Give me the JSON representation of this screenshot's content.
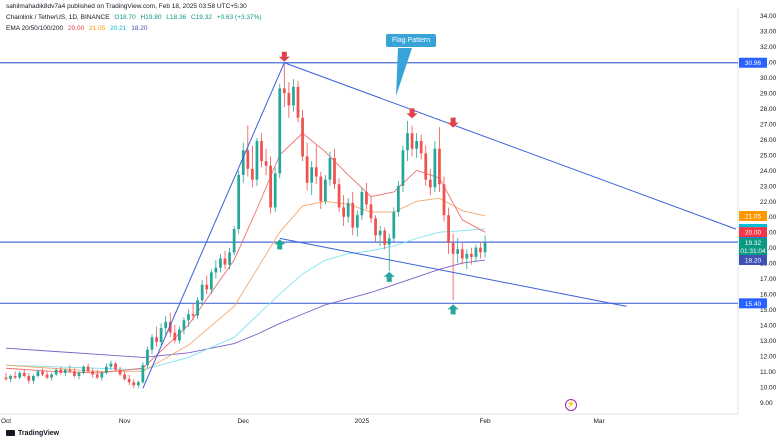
{
  "header": {
    "publisher": "sahilmahadik8dv7a4 published on TradingView.com, Feb 18, 2025 03:58 UTC+5:30",
    "symbol": "Chainlink / TetherUS, 1D, BINANCE",
    "ohlc": {
      "o": "O18.70",
      "h": "H19.80",
      "l": "L18.36",
      "c": "C19.32",
      "chg": "+0.63 (+3.37%)"
    },
    "ema_label": "EMA 20/50/100/200",
    "ema_values": [
      "20.00",
      "21.05",
      "20.21",
      "18.20"
    ]
  },
  "annotations": {
    "flag_pattern": "Flag Pattern"
  },
  "footer": {
    "brand": "TradingView"
  },
  "colors": {
    "up": "#26a69a",
    "down": "#ef5350",
    "ema20": "#f06c6c",
    "ema50": "#f6a76b",
    "ema100": "#7fe3f2",
    "ema200": "#7b5fc9",
    "trendline": "#3a5fd9",
    "hline": "#4a6ed8",
    "arrow_down": "#e0414a",
    "arrow_up": "#26a69a"
  },
  "chart_data": {
    "type": "candlestick",
    "title": "Chainlink / TetherUS, 1D, BINANCE",
    "ylim": [
      8.5,
      34.5
    ],
    "y_ticks": [
      9,
      10,
      11,
      12,
      13,
      14,
      15,
      16,
      17,
      18,
      19,
      20,
      21,
      22,
      23,
      24,
      25,
      26,
      27,
      28,
      29,
      30,
      31,
      32,
      33,
      34
    ],
    "x_labels": [
      {
        "label": "Oct",
        "x": 0
      },
      {
        "label": "Nov",
        "x": 26
      },
      {
        "label": "Dec",
        "x": 52
      },
      {
        "label": "2025",
        "x": 78
      },
      {
        "label": "Feb",
        "x": 105
      },
      {
        "label": "Mar",
        "x": 130
      }
    ],
    "x_range": [
      0,
      160
    ],
    "horizontal_levels": [
      30.96,
      19.36,
      15.4
    ],
    "price_tags": [
      {
        "value": "30.96",
        "price": 30.96,
        "color": "#2962ff"
      },
      {
        "value": "21.05",
        "price": 21.05,
        "color": "#ff9800"
      },
      {
        "value": "20.21",
        "price": 20.21,
        "color": "#00bcd4"
      },
      {
        "value": "20.00",
        "price": 20.0,
        "color": "#f23645"
      },
      {
        "value": "19.36",
        "price": 19.36,
        "color": "#2962ff"
      },
      {
        "value": "19.32",
        "price": 19.32,
        "color": "#089981"
      },
      {
        "value": "01:31:04",
        "price": 18.8,
        "color": "#089981"
      },
      {
        "value": "18.20",
        "price": 18.2,
        "color": "#3f51b5"
      },
      {
        "value": "15.40",
        "price": 15.4,
        "color": "#2962ff"
      }
    ],
    "candles": [
      [
        0,
        10.6,
        10.9,
        10.4,
        10.5
      ],
      [
        1,
        10.5,
        10.8,
        10.3,
        10.7
      ],
      [
        2,
        10.7,
        11.0,
        10.5,
        10.6
      ],
      [
        3,
        10.6,
        11.0,
        10.5,
        10.9
      ],
      [
        4,
        10.9,
        11.1,
        10.6,
        10.7
      ],
      [
        5,
        10.7,
        10.9,
        10.2,
        10.4
      ],
      [
        6,
        10.4,
        10.8,
        10.2,
        10.7
      ],
      [
        7,
        10.7,
        11.1,
        10.6,
        11.0
      ],
      [
        8,
        11.0,
        11.2,
        10.7,
        10.8
      ],
      [
        9,
        10.8,
        11.0,
        10.5,
        10.6
      ],
      [
        10,
        10.6,
        10.9,
        10.4,
        10.8
      ],
      [
        11,
        10.8,
        11.2,
        10.7,
        11.1
      ],
      [
        12,
        11.1,
        11.3,
        10.8,
        10.9
      ],
      [
        13,
        10.9,
        11.2,
        10.7,
        11.1
      ],
      [
        14,
        11.1,
        11.4,
        10.9,
        11.0
      ],
      [
        15,
        11.0,
        11.2,
        10.6,
        10.7
      ],
      [
        16,
        10.7,
        11.0,
        10.5,
        10.9
      ],
      [
        17,
        10.9,
        11.4,
        10.8,
        11.3
      ],
      [
        18,
        11.3,
        11.5,
        10.9,
        11.0
      ],
      [
        19,
        11.0,
        11.2,
        10.6,
        10.8
      ],
      [
        20,
        10.8,
        11.1,
        10.5,
        10.6
      ],
      [
        21,
        10.6,
        11.0,
        10.4,
        10.9
      ],
      [
        22,
        10.9,
        11.5,
        10.8,
        11.3
      ],
      [
        23,
        11.3,
        11.7,
        11.1,
        11.5
      ],
      [
        24,
        11.5,
        11.6,
        11.0,
        11.1
      ],
      [
        25,
        11.1,
        11.3,
        10.7,
        10.8
      ],
      [
        26,
        10.8,
        11.0,
        10.4,
        10.5
      ],
      [
        27,
        10.5,
        10.8,
        10.1,
        10.3
      ],
      [
        28,
        10.3,
        10.5,
        9.9,
        10.1
      ],
      [
        29,
        10.1,
        10.4,
        9.9,
        10.3
      ],
      [
        30,
        10.3,
        11.6,
        10.2,
        11.4
      ],
      [
        31,
        11.4,
        12.6,
        11.2,
        12.4
      ],
      [
        32,
        12.4,
        13.4,
        12.1,
        13.2
      ],
      [
        33,
        13.2,
        13.9,
        12.6,
        12.9
      ],
      [
        34,
        12.9,
        14.1,
        12.7,
        13.8
      ],
      [
        35,
        13.8,
        14.6,
        13.3,
        14.2
      ],
      [
        36,
        14.2,
        14.8,
        13.2,
        13.5
      ],
      [
        37,
        13.5,
        14.0,
        12.8,
        13.0
      ],
      [
        38,
        13.0,
        13.9,
        12.8,
        13.7
      ],
      [
        39,
        13.7,
        14.5,
        13.4,
        14.3
      ],
      [
        40,
        14.3,
        15.0,
        13.9,
        14.7
      ],
      [
        41,
        14.7,
        15.4,
        14.3,
        14.6
      ],
      [
        42,
        14.6,
        15.8,
        14.4,
        15.6
      ],
      [
        43,
        15.6,
        16.9,
        15.3,
        16.6
      ],
      [
        44,
        16.6,
        17.2,
        16.0,
        16.3
      ],
      [
        45,
        16.3,
        17.6,
        16.0,
        17.4
      ],
      [
        46,
        17.4,
        18.2,
        17.0,
        17.7
      ],
      [
        47,
        17.7,
        18.6,
        17.4,
        18.3
      ],
      [
        48,
        18.3,
        18.8,
        17.6,
        17.9
      ],
      [
        49,
        17.9,
        19.0,
        17.6,
        18.7
      ],
      [
        50,
        18.7,
        20.4,
        18.5,
        20.2
      ],
      [
        51,
        20.2,
        24.0,
        19.9,
        23.7
      ],
      [
        52,
        23.7,
        25.8,
        23.2,
        25.3
      ],
      [
        53,
        25.3,
        26.9,
        23.6,
        24.1
      ],
      [
        54,
        24.1,
        25.6,
        22.9,
        23.4
      ],
      [
        55,
        23.4,
        26.1,
        23.0,
        25.9
      ],
      [
        56,
        25.9,
        26.4,
        24.2,
        24.6
      ],
      [
        57,
        24.6,
        25.4,
        23.7,
        24.3
      ],
      [
        58,
        24.3,
        24.9,
        21.2,
        21.6
      ],
      [
        59,
        21.6,
        24.2,
        21.3,
        23.8
      ],
      [
        60,
        23.8,
        29.6,
        23.5,
        29.3
      ],
      [
        61,
        29.3,
        30.9,
        28.1,
        29.0
      ],
      [
        62,
        29.0,
        29.7,
        27.4,
        28.2
      ],
      [
        63,
        28.2,
        29.9,
        27.8,
        29.4
      ],
      [
        64,
        29.4,
        29.8,
        27.1,
        27.4
      ],
      [
        65,
        27.4,
        27.9,
        24.6,
        24.9
      ],
      [
        66,
        24.9,
        25.8,
        22.7,
        23.2
      ],
      [
        67,
        23.2,
        24.6,
        22.4,
        24.2
      ],
      [
        68,
        24.2,
        25.6,
        23.1,
        23.6
      ],
      [
        69,
        23.6,
        23.9,
        21.5,
        22.0
      ],
      [
        70,
        22.0,
        23.7,
        21.8,
        23.4
      ],
      [
        71,
        23.4,
        25.2,
        23.0,
        24.8
      ],
      [
        72,
        24.8,
        25.4,
        22.8,
        23.1
      ],
      [
        73,
        23.1,
        23.5,
        21.3,
        21.6
      ],
      [
        74,
        21.6,
        22.4,
        20.4,
        21.0
      ],
      [
        75,
        21.0,
        22.2,
        20.6,
        21.9
      ],
      [
        76,
        21.9,
        22.6,
        19.8,
        20.3
      ],
      [
        77,
        20.3,
        21.4,
        19.7,
        21.1
      ],
      [
        78,
        21.1,
        22.9,
        20.8,
        22.6
      ],
      [
        79,
        22.6,
        23.2,
        21.5,
        21.8
      ],
      [
        80,
        21.8,
        22.3,
        20.6,
        20.9
      ],
      [
        81,
        20.9,
        21.1,
        19.4,
        19.8
      ],
      [
        82,
        19.8,
        20.4,
        19.1,
        20.1
      ],
      [
        83,
        20.1,
        20.3,
        18.9,
        19.2
      ],
      [
        84,
        19.2,
        19.9,
        17.5,
        19.6
      ],
      [
        85,
        19.6,
        21.6,
        19.4,
        21.3
      ],
      [
        86,
        21.3,
        23.3,
        21.0,
        23.0
      ],
      [
        87,
        23.0,
        25.6,
        22.6,
        25.3
      ],
      [
        88,
        25.3,
        27.2,
        24.6,
        26.4
      ],
      [
        89,
        26.4,
        26.9,
        24.9,
        25.4
      ],
      [
        90,
        25.4,
        26.4,
        24.8,
        25.9
      ],
      [
        91,
        25.9,
        26.3,
        24.7,
        25.1
      ],
      [
        92,
        25.1,
        25.6,
        23.0,
        23.4
      ],
      [
        93,
        23.4,
        24.1,
        22.4,
        22.9
      ],
      [
        94,
        22.9,
        25.9,
        22.6,
        25.4
      ],
      [
        95,
        25.4,
        26.8,
        22.6,
        23.1
      ],
      [
        96,
        23.1,
        23.6,
        20.7,
        21.1
      ],
      [
        97,
        21.1,
        21.6,
        18.6,
        19.3
      ],
      [
        98,
        19.3,
        19.9,
        15.6,
        18.6
      ],
      [
        99,
        18.6,
        19.6,
        18.0,
        18.9
      ],
      [
        100,
        18.9,
        19.3,
        17.9,
        18.3
      ],
      [
        101,
        18.3,
        18.9,
        17.6,
        18.6
      ],
      [
        102,
        18.6,
        19.0,
        17.9,
        18.4
      ],
      [
        103,
        18.4,
        19.2,
        18.1,
        19.0
      ],
      [
        104,
        19.0,
        19.4,
        18.3,
        18.7
      ],
      [
        105,
        18.7,
        19.8,
        18.36,
        19.32
      ]
    ],
    "ema_x": [
      0,
      10,
      20,
      30,
      40,
      50,
      55,
      60,
      65,
      70,
      75,
      80,
      85,
      90,
      95,
      100,
      105
    ],
    "ema20": [
      11.2,
      11.0,
      10.9,
      11.2,
      14.0,
      18.2,
      21.5,
      25.0,
      26.4,
      25.2,
      23.7,
      22.3,
      22.6,
      24.0,
      23.5,
      20.8,
      20.0
    ],
    "ema50": [
      11.4,
      11.2,
      11.0,
      11.0,
      12.7,
      15.2,
      17.6,
      20.0,
      21.7,
      22.0,
      21.8,
      21.3,
      21.3,
      22.0,
      22.2,
      21.4,
      21.05
    ],
    "ema100": [
      11.4,
      11.3,
      11.2,
      11.1,
      11.9,
      13.2,
      14.6,
      16.0,
      17.3,
      18.2,
      18.6,
      18.8,
      19.1,
      19.6,
      20.0,
      20.1,
      20.21
    ],
    "ema200": [
      12.5,
      12.3,
      12.1,
      11.9,
      12.2,
      12.8,
      13.4,
      14.1,
      14.7,
      15.3,
      15.7,
      16.1,
      16.6,
      17.1,
      17.6,
      18.0,
      18.2
    ],
    "trendlines": [
      {
        "x1": 30,
        "y1": 9.9,
        "x2": 61,
        "y2": 30.96
      },
      {
        "x1": 61,
        "y1": 30.96,
        "x2": 160,
        "y2": 20.2
      },
      {
        "x1": 60,
        "y1": 19.6,
        "x2": 136,
        "y2": 15.2
      }
    ],
    "arrows": [
      {
        "dir": "down",
        "x": 61,
        "y": 30.96
      },
      {
        "dir": "down",
        "x": 89,
        "y": 27.3
      },
      {
        "dir": "down",
        "x": 98,
        "y": 26.7
      },
      {
        "dir": "up",
        "x": 60,
        "y": 19.6
      },
      {
        "dir": "up",
        "x": 84,
        "y": 17.5
      },
      {
        "dir": "up",
        "x": 98,
        "y": 15.4
      }
    ],
    "legend": "top-left",
    "grid": false
  }
}
